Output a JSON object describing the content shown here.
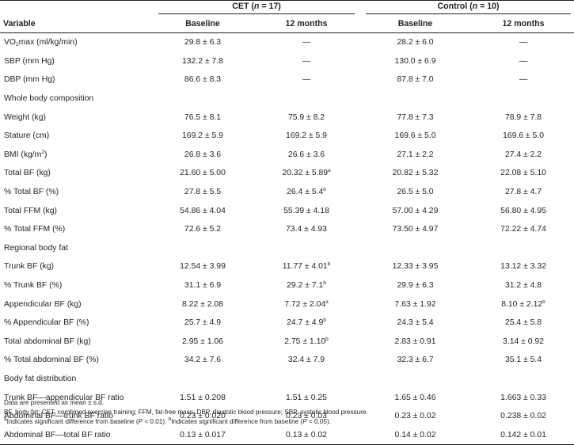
{
  "header": {
    "cet_pre": "CET (",
    "n_symbol": "n",
    "cet_post": " = 17)",
    "control_pre": "Control (",
    "control_post": " = 10)",
    "variable": "Variable",
    "baseline": "Baseline",
    "months12": "12 months"
  },
  "rows": [
    {
      "kind": "vo2",
      "label_a": "VO",
      "label_sub": "2",
      "label_b": "max (ml/kg/min)",
      "cells": [
        {
          "v": "29.8 ± 6.3"
        },
        {
          "v": "—"
        },
        {
          "v": "28.2 ± 6.0"
        },
        {
          "v": "—"
        }
      ]
    },
    {
      "label": "SBP (mm Hg)",
      "cells": [
        {
          "v": "132.2 ± 7.8"
        },
        {
          "v": "—"
        },
        {
          "v": "130.0 ± 6.9"
        },
        {
          "v": "—"
        }
      ]
    },
    {
      "label": "DBP (mm Hg)",
      "cells": [
        {
          "v": "86.6 ± 8.3"
        },
        {
          "v": "—"
        },
        {
          "v": "87.8 ± 7.0"
        },
        {
          "v": "—"
        }
      ]
    },
    {
      "section": true,
      "label": "Whole body composition"
    },
    {
      "label": "Weight (kg)",
      "cells": [
        {
          "v": "76.5 ± 8.1"
        },
        {
          "v": "75.9 ± 8.2"
        },
        {
          "v": "77.8 ± 7.3"
        },
        {
          "v": "78.9 ± 7.8"
        }
      ]
    },
    {
      "label": "Stature (cm)",
      "cells": [
        {
          "v": "169.2 ± 5.9"
        },
        {
          "v": "169.2 ± 5.9"
        },
        {
          "v": "169.6 ± 5.0"
        },
        {
          "v": "169.6 ± 5.0"
        }
      ]
    },
    {
      "kind": "bmi",
      "label_a": "BMI (kg/m",
      "label_sup": "2",
      "label_b": ")",
      "cells": [
        {
          "v": "26.8 ± 3.6"
        },
        {
          "v": "26.6 ± 3.6"
        },
        {
          "v": "27.1 ± 2.2"
        },
        {
          "v": "27.4 ± 2.2"
        }
      ]
    },
    {
      "label": "Total BF (kg)",
      "cells": [
        {
          "v": "21.60 ± 5.00"
        },
        {
          "v": "20.32 ± 5.89",
          "s": "a"
        },
        {
          "v": "20.82 ± 5.32"
        },
        {
          "v": "22.08 ± 5.10"
        }
      ]
    },
    {
      "label": "% Total BF (%)",
      "cells": [
        {
          "v": "27.8 ± 5.5"
        },
        {
          "v": "26.4 ± 5.4",
          "s": "b"
        },
        {
          "v": "26.5 ± 5.0"
        },
        {
          "v": "27.8 ± 4.7"
        }
      ]
    },
    {
      "label": "Total FFM (kg)",
      "cells": [
        {
          "v": "54.86 ± 4.04"
        },
        {
          "v": "55.39 ± 4.18"
        },
        {
          "v": "57.00 ± 4.29"
        },
        {
          "v": "56.80 ± 4.95"
        }
      ]
    },
    {
      "label": "% Total FFM (%)",
      "cells": [
        {
          "v": "72.6 ± 5.2"
        },
        {
          "v": "73.4 ± 4.93"
        },
        {
          "v": "73.50 ± 4.97"
        },
        {
          "v": "72.22 ± 4.74"
        }
      ]
    },
    {
      "section": true,
      "label": "Regional body fat"
    },
    {
      "label": "Trunk BF (kg)",
      "cells": [
        {
          "v": "12.54 ± 3.99"
        },
        {
          "v": "11.77 ± 4.01",
          "s": "b"
        },
        {
          "v": "12.33 ± 3.95"
        },
        {
          "v": "13.12 ± 3.32"
        }
      ]
    },
    {
      "label": "% Trunk BF (%)",
      "cells": [
        {
          "v": "31.1 ± 6.9"
        },
        {
          "v": "29.2 ± 7.1",
          "s": "b"
        },
        {
          "v": "29.9 ± 6.3"
        },
        {
          "v": "31.2 ± 4.8"
        }
      ]
    },
    {
      "label": "Appendicular BF (kg)",
      "cells": [
        {
          "v": "8.22 ± 2.08"
        },
        {
          "v": "7.72 ± 2.04",
          "s": "a"
        },
        {
          "v": "7.63 ± 1.92"
        },
        {
          "v": "8.10 ± 2.12",
          "s": "b"
        }
      ]
    },
    {
      "label": "% Appendicular BF (%)",
      "cells": [
        {
          "v": "25.7 ± 4.9"
        },
        {
          "v": "24.7 ± 4.9",
          "s": "b"
        },
        {
          "v": "24.3 ± 5.4"
        },
        {
          "v": "25.4 ± 5.8"
        }
      ]
    },
    {
      "label": "Total abdominal BF (kg)",
      "cells": [
        {
          "v": "2.95 ± 1.06"
        },
        {
          "v": "2.75 ± 1.10",
          "s": "b"
        },
        {
          "v": "2.83 ± 0.91"
        },
        {
          "v": "3.14 ± 0.92"
        }
      ]
    },
    {
      "label": "% Total abdominal BF (%)",
      "cells": [
        {
          "v": "34.2 ± 7.6"
        },
        {
          "v": "32.4 ± 7.9"
        },
        {
          "v": "32.3 ± 6.7"
        },
        {
          "v": "35.1 ± 5.4"
        }
      ]
    },
    {
      "section": true,
      "label": "Body fat distribution"
    },
    {
      "label": "Trunk BF—appendicular BF ratio",
      "cells": [
        {
          "v": "1.51 ± 0.208"
        },
        {
          "v": "1.51 ± 0.25"
        },
        {
          "v": "1.65 ± 0.46"
        },
        {
          "v": "1.663 ± 0.33"
        }
      ]
    },
    {
      "label": "Abdominal BF—trunk BF ratio",
      "cells": [
        {
          "v": "0.23 ± 0.020"
        },
        {
          "v": "0.23 ± 0.03"
        },
        {
          "v": "0.23 ± 0.02"
        },
        {
          "v": "0.238 ± 0.02"
        }
      ]
    },
    {
      "label": "Abdominal BF—total BF ratio",
      "cells": [
        {
          "v": "0.13 ± 0.017"
        },
        {
          "v": "0.13 ± 0.02"
        },
        {
          "v": "0.14 ± 0.02"
        },
        {
          "v": "0.142 ± 0.01"
        }
      ]
    }
  ],
  "footnotes": {
    "line1": "Data are presented as mean ± s.d.",
    "line2": "BF, body fat; CET, combined exercise training; FFM, fat-free mass; DBP, diastolic blood pressure; SBP, systolic blood pressure.",
    "note_a_mark": "a",
    "note_a_pre": "Indicates significant difference from baseline (",
    "note_a_p": "P",
    "note_a_post": " < 0.01). ",
    "note_b_mark": "b",
    "note_b_pre": "Indicates significant difference from baseline (",
    "note_b_p": "P",
    "note_b_post": " < 0.05)."
  }
}
